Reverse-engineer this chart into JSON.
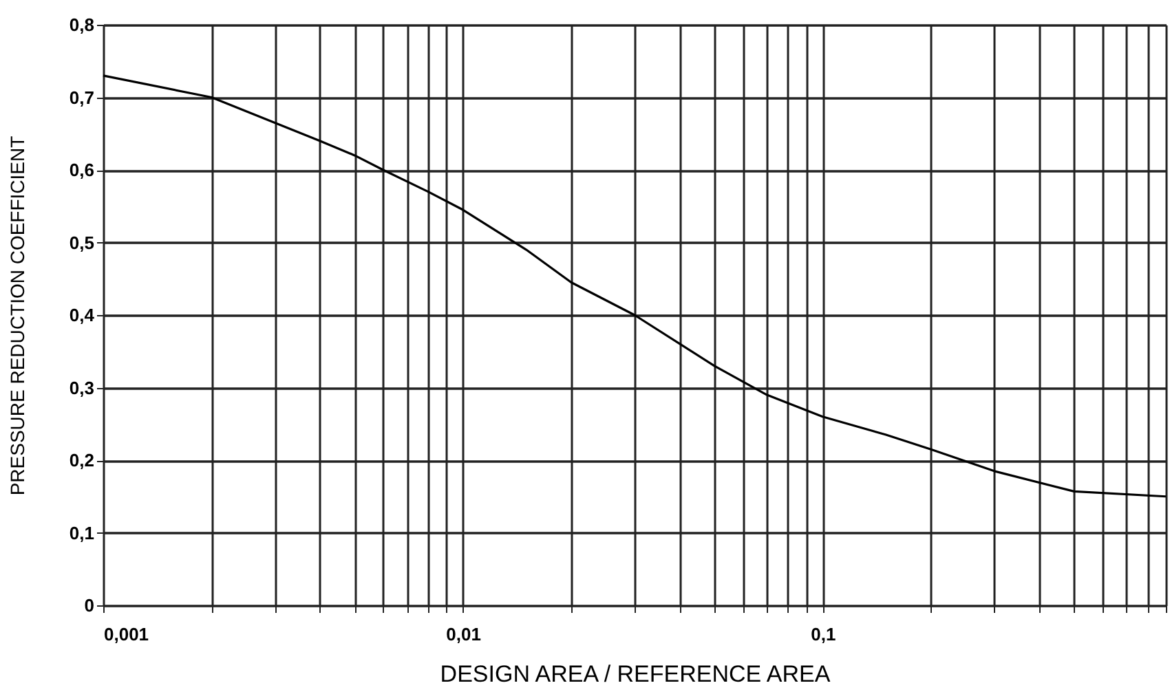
{
  "chart_data": {
    "type": "line",
    "xlabel": "DESIGN AREA / REFERENCE AREA",
    "ylabel": "PRESSURE REDUCTION COEFFICIENT",
    "log": "x",
    "grid": true,
    "marker": "none",
    "line_style": "solid",
    "x": [
      0.001,
      0.002,
      0.003,
      0.004,
      0.005,
      0.006,
      0.008,
      0.01,
      0.015,
      0.02,
      0.03,
      0.05,
      0.07,
      0.1,
      0.15,
      0.2,
      0.3,
      0.5,
      0.9
    ],
    "series": [
      {
        "color": "#000000",
        "values": [
          0.73,
          0.7,
          0.665,
          0.64,
          0.62,
          0.6,
          0.57,
          0.545,
          0.49,
          0.445,
          0.4,
          0.33,
          0.29,
          0.26,
          0.235,
          0.215,
          0.185,
          0.157,
          0.15
        ]
      }
    ],
    "xlim": [
      0.001,
      0.9
    ],
    "xticks": [
      {
        "value": 0.001,
        "label": "0,001"
      },
      {
        "value": 0.002,
        "label": null
      },
      {
        "value": 0.003,
        "label": null
      },
      {
        "value": 0.004,
        "label": null
      },
      {
        "value": 0.005,
        "label": null
      },
      {
        "value": 0.006,
        "label": null
      },
      {
        "value": 0.007,
        "label": null
      },
      {
        "value": 0.008,
        "label": null
      },
      {
        "value": 0.009,
        "label": null
      },
      {
        "value": 0.01,
        "label": "0,01"
      },
      {
        "value": 0.02,
        "label": null
      },
      {
        "value": 0.03,
        "label": null
      },
      {
        "value": 0.04,
        "label": null
      },
      {
        "value": 0.05,
        "label": null
      },
      {
        "value": 0.06,
        "label": null
      },
      {
        "value": 0.07,
        "label": null
      },
      {
        "value": 0.08,
        "label": null
      },
      {
        "value": 0.09,
        "label": null
      },
      {
        "value": 0.1,
        "label": "0,1"
      },
      {
        "value": 0.2,
        "label": null
      },
      {
        "value": 0.3,
        "label": null
      },
      {
        "value": 0.4,
        "label": null
      },
      {
        "value": 0.5,
        "label": null
      },
      {
        "value": 0.6,
        "label": null
      },
      {
        "value": 0.7,
        "label": null
      },
      {
        "value": 0.8,
        "label": null
      },
      {
        "value": 0.9,
        "label": null
      }
    ],
    "ylim": [
      0,
      0.8
    ],
    "yticks": [
      0,
      {
        "value": 0.1,
        "label": "0,1"
      },
      {
        "value": 0.2,
        "label": "0,2"
      },
      {
        "value": 0.3,
        "label": "0,3"
      },
      {
        "value": 0.4,
        "label": "0,4"
      },
      {
        "value": 0.5,
        "label": "0,5"
      },
      {
        "value": 0.6,
        "label": "0,6"
      },
      {
        "value": 0.7,
        "label": "0,7"
      },
      {
        "value": 0.8,
        "label": "0,8"
      }
    ]
  }
}
